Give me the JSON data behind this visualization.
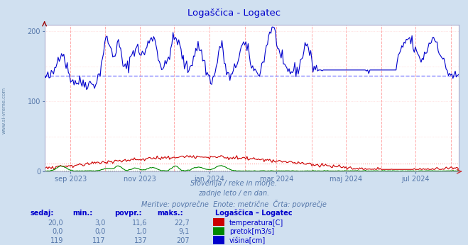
{
  "title": "Logaščica - Logatec",
  "title_color": "#0000cc",
  "bg_color": "#d0e0f0",
  "plot_bg_color": "#ffffff",
  "subtitle_lines": [
    "Slovenija / reke in morje.",
    "zadnje leto / en dan.",
    "Meritve: povprečne  Enote: metrične  Črta: povprečje"
  ],
  "xaxis_labels": [
    "sep 2023",
    "nov 2023",
    "jan 2024",
    "mar 2024",
    "maj 2024",
    "jul 2024"
  ],
  "yticks": [
    0,
    100,
    200
  ],
  "ylim": [
    0,
    210
  ],
  "temp_color": "#cc0000",
  "pretok_color": "#008800",
  "visina_color": "#0000cc",
  "avg_visina_color": "#8888ff",
  "avg_temp_color": "#ff9999",
  "avg_pretok_color": "#88bb88",
  "vgrid_color": "#ffaaaa",
  "hgrid_color": "#ffcccc",
  "temp_avg": 11.6,
  "temp_min": 3.0,
  "temp_max": 22.7,
  "temp_current": 20.0,
  "pretok_avg": 1.0,
  "pretok_min": 0.0,
  "pretok_max": 9.1,
  "pretok_current": 0.0,
  "visina_avg": 137,
  "visina_min": 117,
  "visina_max": 207,
  "visina_current": 119,
  "legend_title": "Logaščica – Logatec",
  "legend_items": [
    {
      "label": "temperatura[C]",
      "color": "#cc0000"
    },
    {
      "label": "pretok[m3/s]",
      "color": "#008800"
    },
    {
      "label": "višina[cm]",
      "color": "#0000cc"
    }
  ],
  "table_headers": [
    "sedaj:",
    "min.:",
    "povpr.:",
    "maks.:"
  ],
  "table_rows": [
    [
      "20,0",
      "3,0",
      "11,6",
      "22,7"
    ],
    [
      "0,0",
      "0,0",
      "1,0",
      "9,1"
    ],
    [
      "119",
      "117",
      "137",
      "207"
    ]
  ],
  "n_points": 365,
  "sidebar_text": "www.si-vreme.com",
  "sidebar_color": "#6688aa",
  "tick_color": "#5577aa",
  "text_color": "#5577aa",
  "bold_color": "#0000cc"
}
